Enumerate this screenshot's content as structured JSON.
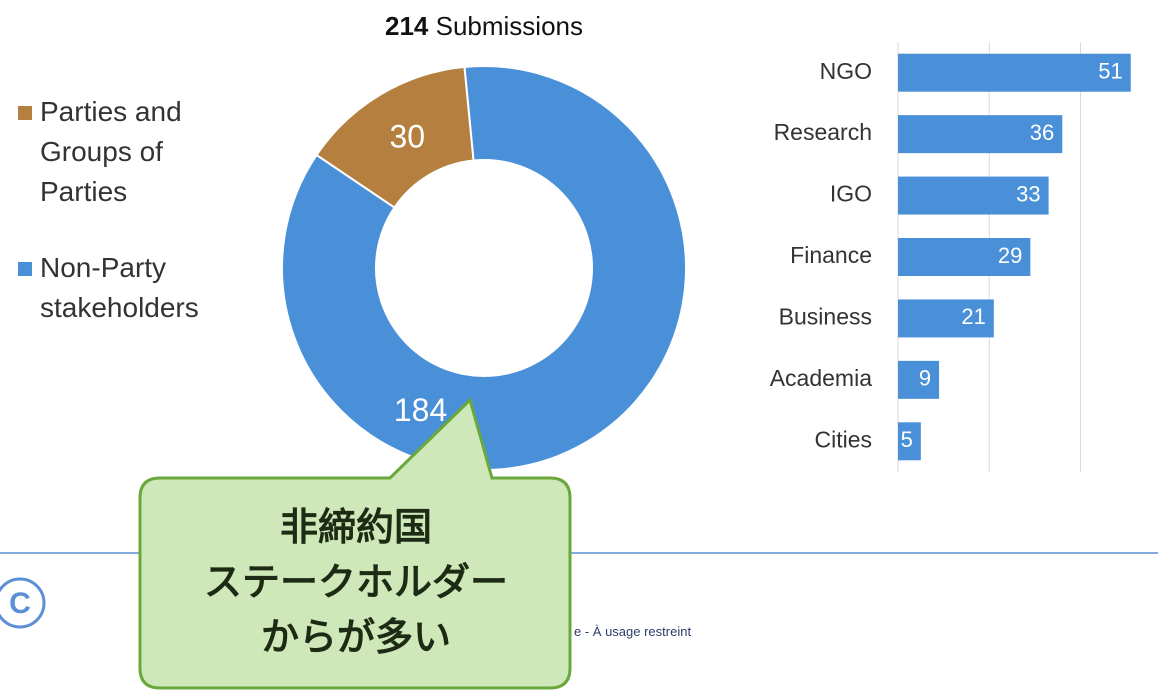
{
  "chart_data": [
    {
      "type": "donut",
      "title": {
        "count": 214,
        "text": "Submissions"
      },
      "categories": [
        "Parties and Groups of Parties",
        "Non-Party stakeholders"
      ],
      "values": [
        30,
        184
      ],
      "colors": [
        "#b5803f",
        "#4a90d9"
      ],
      "legend": "left"
    },
    {
      "type": "hbar",
      "categories": [
        "NGO",
        "Research",
        "IGO",
        "Finance",
        "Business",
        "Academia",
        "Cities"
      ],
      "values": [
        51,
        36,
        33,
        29,
        21,
        9,
        5
      ],
      "color": "#4a90d9",
      "xlim": [
        0,
        55
      ],
      "xticks": [
        0,
        20,
        40
      ],
      "grid": true
    }
  ],
  "callout": {
    "lines": [
      "非締約国",
      "ステークホルダー",
      "からが多い"
    ]
  },
  "footer": {
    "text": "e - À usage restreint"
  }
}
